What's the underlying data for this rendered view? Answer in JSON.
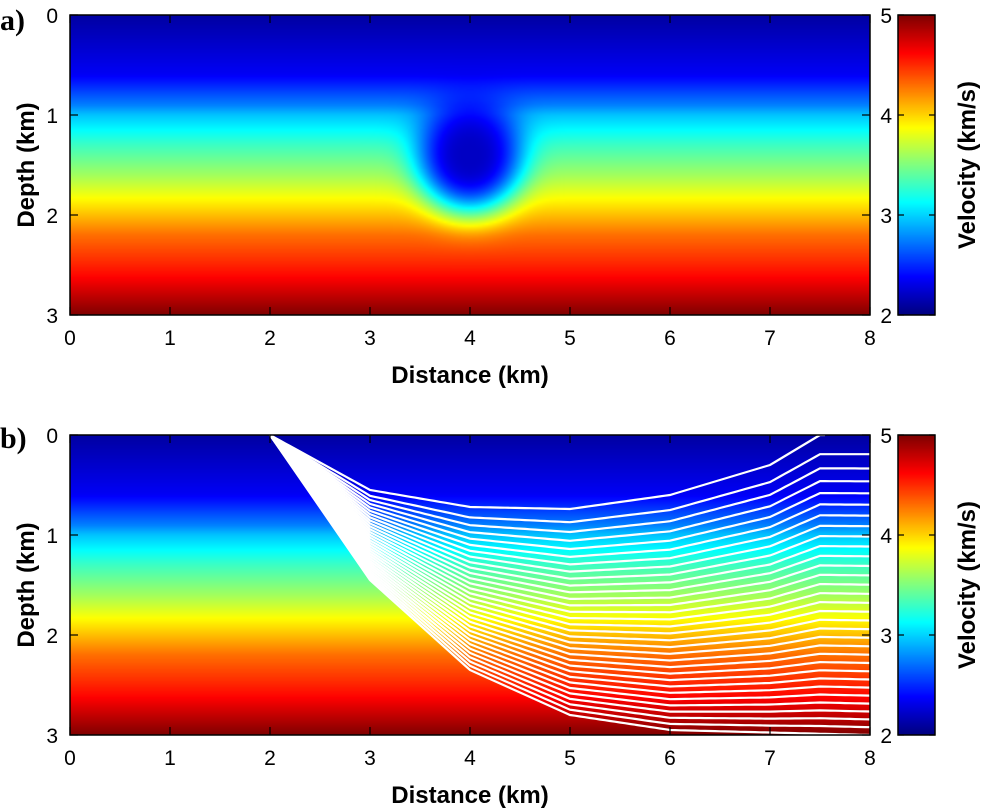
{
  "panel_a": {
    "letter": "a)"
  },
  "panel_b": {
    "letter": "b)"
  },
  "chart_data": [
    {
      "type": "heatmap",
      "panel": "a)",
      "xlabel": "Distance (km)",
      "ylabel": "Depth (km)",
      "xlim": [
        0,
        8
      ],
      "ylim": [
        0,
        3
      ],
      "y_reversed": true,
      "xticks": [
        "0",
        "1",
        "2",
        "3",
        "4",
        "5",
        "6",
        "7",
        "8"
      ],
      "yticks": [
        "0",
        "1",
        "2",
        "3"
      ],
      "colorbar": {
        "label": "Velocity (km/s)",
        "range": [
          2,
          5
        ],
        "ticks": [
          "2",
          "3",
          "4",
          "5"
        ],
        "colormap": "jet"
      },
      "background_profile": [
        {
          "depth": 0.0,
          "velocity": 2.1
        },
        {
          "depth": 0.6,
          "velocity": 2.35
        },
        {
          "depth": 0.9,
          "velocity": 2.75
        },
        {
          "depth": 1.0,
          "velocity": 2.95
        },
        {
          "depth": 1.3,
          "velocity": 3.3
        },
        {
          "depth": 1.6,
          "velocity": 3.6
        },
        {
          "depth": 1.9,
          "velocity": 3.95
        },
        {
          "depth": 2.2,
          "velocity": 4.3
        },
        {
          "depth": 2.6,
          "velocity": 4.6
        },
        {
          "depth": 3.0,
          "velocity": 5.0
        }
      ],
      "low_velocity_anomaly": {
        "center_distance": 4.0,
        "center_depth": 1.4,
        "radius_x": 0.6,
        "radius_z": 0.65,
        "min_velocity": 2.2
      }
    },
    {
      "type": "heatmap",
      "panel": "b)",
      "xlabel": "Distance (km)",
      "ylabel": "Depth (km)",
      "xlim": [
        0,
        8
      ],
      "ylim": [
        0,
        3
      ],
      "y_reversed": true,
      "xticks": [
        "0",
        "1",
        "2",
        "3",
        "4",
        "5",
        "6",
        "7",
        "8"
      ],
      "yticks": [
        "0",
        "1",
        "2",
        "3"
      ],
      "colorbar": {
        "label": "Velocity (km/s)",
        "range": [
          2,
          5
        ],
        "ticks": [
          "2",
          "3",
          "4",
          "5"
        ],
        "colormap": "jet"
      },
      "background_profile": [
        {
          "depth": 0.0,
          "velocity": 2.1
        },
        {
          "depth": 0.6,
          "velocity": 2.35
        },
        {
          "depth": 0.9,
          "velocity": 2.75
        },
        {
          "depth": 1.0,
          "velocity": 2.95
        },
        {
          "depth": 1.3,
          "velocity": 3.3
        },
        {
          "depth": 1.6,
          "velocity": 3.6
        },
        {
          "depth": 1.9,
          "velocity": 3.95
        },
        {
          "depth": 2.2,
          "velocity": 4.3
        },
        {
          "depth": 2.6,
          "velocity": 4.6
        },
        {
          "depth": 3.0,
          "velocity": 5.0
        }
      ],
      "ray_overlay": {
        "color": "#ffffff",
        "source": {
          "distance": 2.0,
          "depth": 0.0
        },
        "ray_count": 32,
        "outermost_ray": [
          [
            2.0,
            0.0
          ],
          [
            3.0,
            0.55
          ],
          [
            4.0,
            0.72
          ],
          [
            5.0,
            0.74
          ],
          [
            6.0,
            0.6
          ],
          [
            7.0,
            0.3
          ],
          [
            7.5,
            0.0
          ]
        ],
        "innermost_ray": [
          [
            2.0,
            0.0
          ],
          [
            3.0,
            1.45
          ],
          [
            4.0,
            2.35
          ],
          [
            5.0,
            2.8
          ],
          [
            6.0,
            2.95
          ],
          [
            8.0,
            3.0
          ]
        ]
      }
    }
  ]
}
